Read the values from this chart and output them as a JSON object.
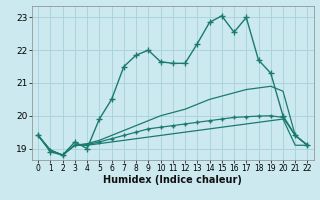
{
  "xlabel": "Humidex (Indice chaleur)",
  "bg_color": "#cce9f0",
  "grid_color": "#aad4dc",
  "line_color": "#1a7a6e",
  "xlim": [
    -0.5,
    22.5
  ],
  "ylim": [
    18.65,
    23.35
  ],
  "yticks": [
    19,
    20,
    21,
    22,
    23
  ],
  "xticks": [
    0,
    1,
    2,
    3,
    4,
    5,
    6,
    7,
    8,
    9,
    10,
    11,
    12,
    13,
    14,
    15,
    16,
    17,
    18,
    19,
    20,
    21,
    22
  ],
  "lines": [
    {
      "x": [
        0,
        1,
        2,
        3,
        4,
        5,
        6,
        7,
        8,
        9,
        10,
        11,
        12,
        13,
        14,
        15,
        16,
        17,
        18,
        19,
        20,
        21,
        22
      ],
      "y": [
        19.4,
        18.9,
        18.8,
        19.2,
        19.0,
        19.9,
        20.5,
        21.5,
        21.85,
        22.0,
        21.65,
        21.6,
        21.6,
        22.2,
        22.85,
        23.05,
        22.55,
        23.0,
        21.7,
        21.3,
        20.0,
        19.4,
        19.1
      ],
      "marker": "+",
      "linewidth": 1.0,
      "markersize": 4
    },
    {
      "x": [
        0,
        1,
        2,
        3,
        4,
        5,
        6,
        7,
        8,
        9,
        10,
        11,
        12,
        13,
        14,
        15,
        16,
        17,
        18,
        19,
        20,
        21,
        22
      ],
      "y": [
        19.4,
        18.95,
        18.8,
        19.1,
        19.1,
        19.15,
        19.2,
        19.25,
        19.3,
        19.35,
        19.4,
        19.45,
        19.5,
        19.55,
        19.6,
        19.65,
        19.7,
        19.75,
        19.8,
        19.85,
        19.9,
        19.1,
        19.1
      ],
      "marker": null,
      "linewidth": 0.9,
      "markersize": 0
    },
    {
      "x": [
        0,
        1,
        2,
        3,
        4,
        5,
        6,
        7,
        8,
        9,
        10,
        11,
        12,
        13,
        14,
        15,
        16,
        17,
        18,
        19,
        20,
        21,
        22
      ],
      "y": [
        19.4,
        18.95,
        18.8,
        19.1,
        19.15,
        19.25,
        19.4,
        19.55,
        19.7,
        19.85,
        20.0,
        20.1,
        20.2,
        20.35,
        20.5,
        20.6,
        20.7,
        20.8,
        20.85,
        20.9,
        20.75,
        19.4,
        19.1
      ],
      "marker": null,
      "linewidth": 0.9,
      "markersize": 0
    },
    {
      "x": [
        0,
        1,
        2,
        3,
        4,
        5,
        6,
        7,
        8,
        9,
        10,
        11,
        12,
        13,
        14,
        15,
        16,
        17,
        18,
        19,
        20,
        21,
        22
      ],
      "y": [
        19.4,
        18.95,
        18.8,
        19.1,
        19.12,
        19.2,
        19.3,
        19.4,
        19.5,
        19.6,
        19.65,
        19.7,
        19.75,
        19.8,
        19.85,
        19.9,
        19.95,
        19.97,
        19.99,
        20.0,
        19.95,
        19.4,
        19.1
      ],
      "marker": "+",
      "linewidth": 0.9,
      "markersize": 3
    }
  ]
}
